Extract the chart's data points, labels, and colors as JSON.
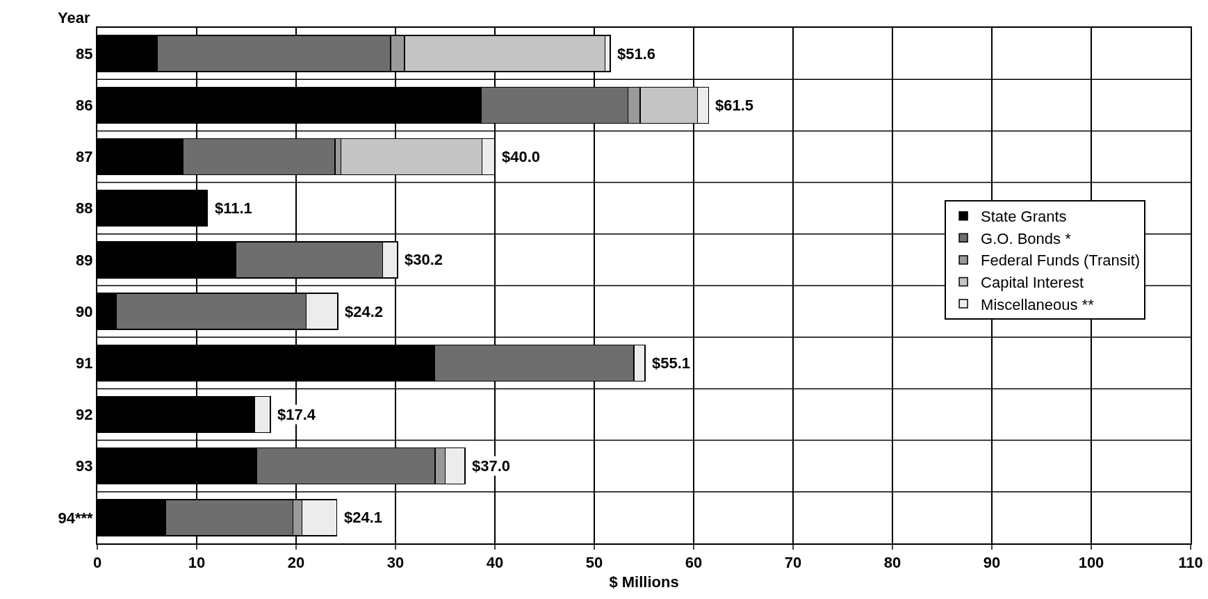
{
  "chart_data": {
    "type": "bar",
    "orientation": "horizontal",
    "stacked": true,
    "ylabel": "Year",
    "xlabel": "$ Millions",
    "categories": [
      "85",
      "86",
      "87",
      "88",
      "89",
      "90",
      "91",
      "92",
      "93",
      "94***"
    ],
    "series": [
      {
        "name": "State Grants",
        "color": "#000000",
        "values": [
          6.0,
          38.6,
          8.6,
          11.1,
          13.9,
          1.9,
          33.9,
          15.8,
          16.0,
          6.9
        ]
      },
      {
        "name": "G.O. Bonds *",
        "color": "#6e6e6e",
        "values": [
          23.5,
          14.8,
          15.3,
          null,
          14.8,
          19.1,
          20.1,
          null,
          18.0,
          12.8
        ]
      },
      {
        "name": "Federal Funds (Transit)",
        "color": "#9a9a9a",
        "values": [
          1.4,
          1.2,
          0.6,
          null,
          null,
          null,
          null,
          null,
          1.0,
          0.9
        ]
      },
      {
        "name": "Capital Interest",
        "color": "#c4c4c4",
        "values": [
          20.2,
          5.8,
          14.2,
          null,
          null,
          null,
          null,
          null,
          null,
          null
        ]
      },
      {
        "name": "Miscellaneous **",
        "color": "#ececec",
        "values": [
          0.5,
          1.1,
          1.3,
          null,
          1.5,
          3.2,
          1.1,
          1.6,
          2.0,
          3.5
        ]
      }
    ],
    "totals": [
      "$51.6",
      "$61.5",
      "$40.0",
      "$11.1",
      "$30.2",
      "$24.2",
      "$55.1",
      "$17.4",
      "$37.0",
      "$24.1"
    ],
    "xlim": [
      0,
      110
    ],
    "xticks": [
      0,
      10,
      20,
      30,
      40,
      50,
      60,
      70,
      80,
      90,
      100,
      110
    ],
    "grid": true,
    "legend": "right"
  }
}
